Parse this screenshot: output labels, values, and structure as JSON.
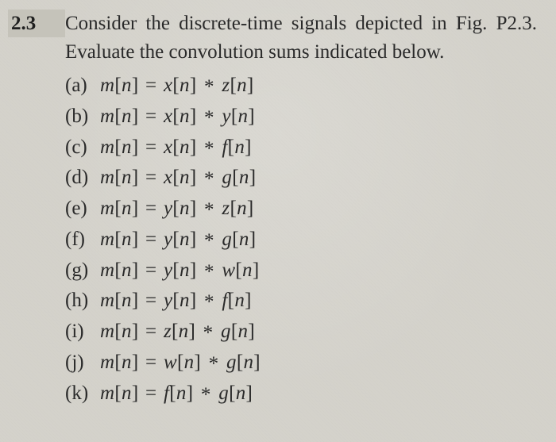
{
  "background_color": "#d4d2cb",
  "text_color": "#2a2a2a",
  "font_family": "Times New Roman",
  "font_size_main": 25,
  "problem_number": "2.3",
  "problem_text": "Consider the discrete-time signals depicted in Fig. P2.3. Evaluate the convolution sums indi­cated below.",
  "items": [
    {
      "label": "(a)",
      "lhs": "m[n]",
      "rhs1": "x[n]",
      "rhs2": "z[n]"
    },
    {
      "label": "(b)",
      "lhs": "m[n]",
      "rhs1": "x[n]",
      "rhs2": "y[n]"
    },
    {
      "label": "(c)",
      "lhs": "m[n]",
      "rhs1": "x[n]",
      "rhs2": "f[n]"
    },
    {
      "label": "(d)",
      "lhs": "m[n]",
      "rhs1": "x[n]",
      "rhs2": "g[n]"
    },
    {
      "label": "(e)",
      "lhs": "m[n]",
      "rhs1": "y[n]",
      "rhs2": "z[n]"
    },
    {
      "label": "(f)",
      "lhs": "m[n]",
      "rhs1": "y[n]",
      "rhs2": "g[n]"
    },
    {
      "label": "(g)",
      "lhs": "m[n]",
      "rhs1": "y[n]",
      "rhs2": "w[n]"
    },
    {
      "label": "(h)",
      "lhs": "m[n]",
      "rhs1": "y[n]",
      "rhs2": "f[n]"
    },
    {
      "label": "(i)",
      "lhs": "m[n]",
      "rhs1": "z[n]",
      "rhs2": "g[n]"
    },
    {
      "label": "(j)",
      "lhs": "m[n]",
      "rhs1": "w[n]",
      "rhs2": "g[n]"
    },
    {
      "label": "(k)",
      "lhs": "m[n]",
      "rhs1": "f[n]",
      "rhs2": "g[n]"
    }
  ]
}
